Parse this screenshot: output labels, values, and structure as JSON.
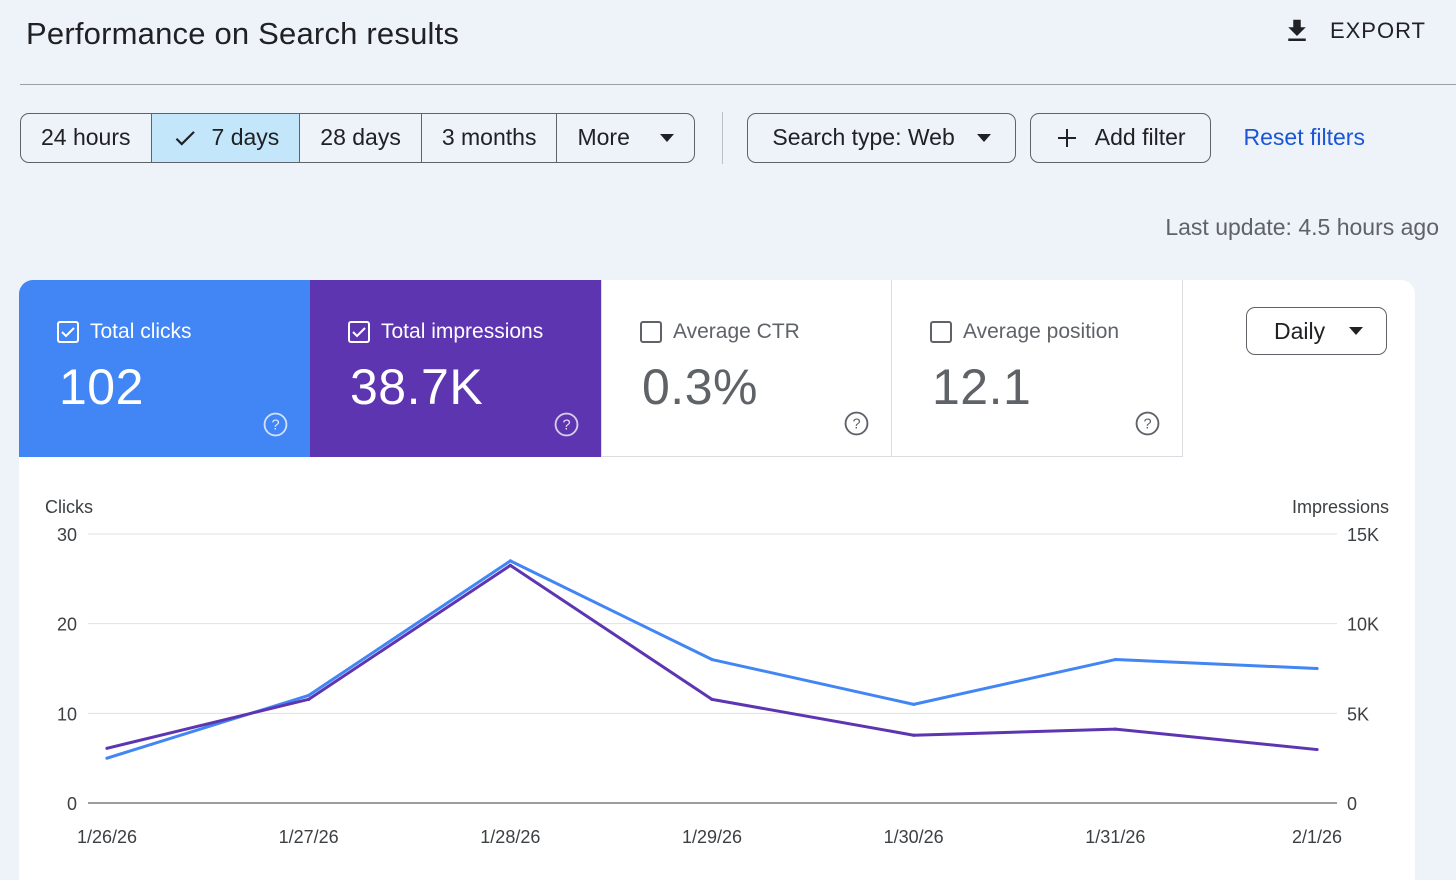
{
  "header": {
    "title": "Performance on Search results",
    "export_label": "EXPORT"
  },
  "filters": {
    "ranges": [
      "24 hours",
      "7 days",
      "28 days",
      "3 months"
    ],
    "selected_range": "7 days",
    "more_label": "More",
    "search_type_label": "Search type: Web",
    "add_filter_label": "Add filter",
    "reset_label": "Reset filters"
  },
  "last_update": "Last update: 4.5 hours ago",
  "metrics": [
    {
      "label": "Total clicks",
      "value": "102",
      "checked": true,
      "color": "#4285f4"
    },
    {
      "label": "Total impressions",
      "value": "38.7K",
      "checked": true,
      "color": "#5e35b1"
    },
    {
      "label": "Average CTR",
      "value": "0.3%",
      "checked": false,
      "color": "#ffffff"
    },
    {
      "label": "Average position",
      "value": "12.1",
      "checked": false,
      "color": "#ffffff"
    }
  ],
  "granularity": "Daily",
  "colors": {
    "clicks": "#4285f4",
    "impressions": "#5e35b1",
    "link": "#1a56d6",
    "active_range_bg": "#c4e6fb"
  },
  "chart_data": {
    "type": "line",
    "categories": [
      "1/26/26",
      "1/27/26",
      "1/28/26",
      "1/29/26",
      "1/30/26",
      "1/31/26",
      "2/1/26"
    ],
    "series": [
      {
        "name": "Clicks",
        "axis": "left",
        "values": [
          5,
          12,
          27,
          16,
          11,
          16,
          15
        ]
      },
      {
        "name": "Impressions",
        "axis": "right",
        "values": [
          3050,
          5780,
          13250,
          5780,
          3780,
          4120,
          2980
        ]
      }
    ],
    "ylabel_left": "Clicks",
    "ylabel_right": "Impressions",
    "ylim_left": [
      0,
      30
    ],
    "ylim_right": [
      0,
      15000
    ],
    "yticks_left": [
      "0",
      "10",
      "20",
      "30"
    ],
    "yticks_right": [
      "0",
      "5K",
      "10K",
      "15K"
    ],
    "grid": true
  }
}
